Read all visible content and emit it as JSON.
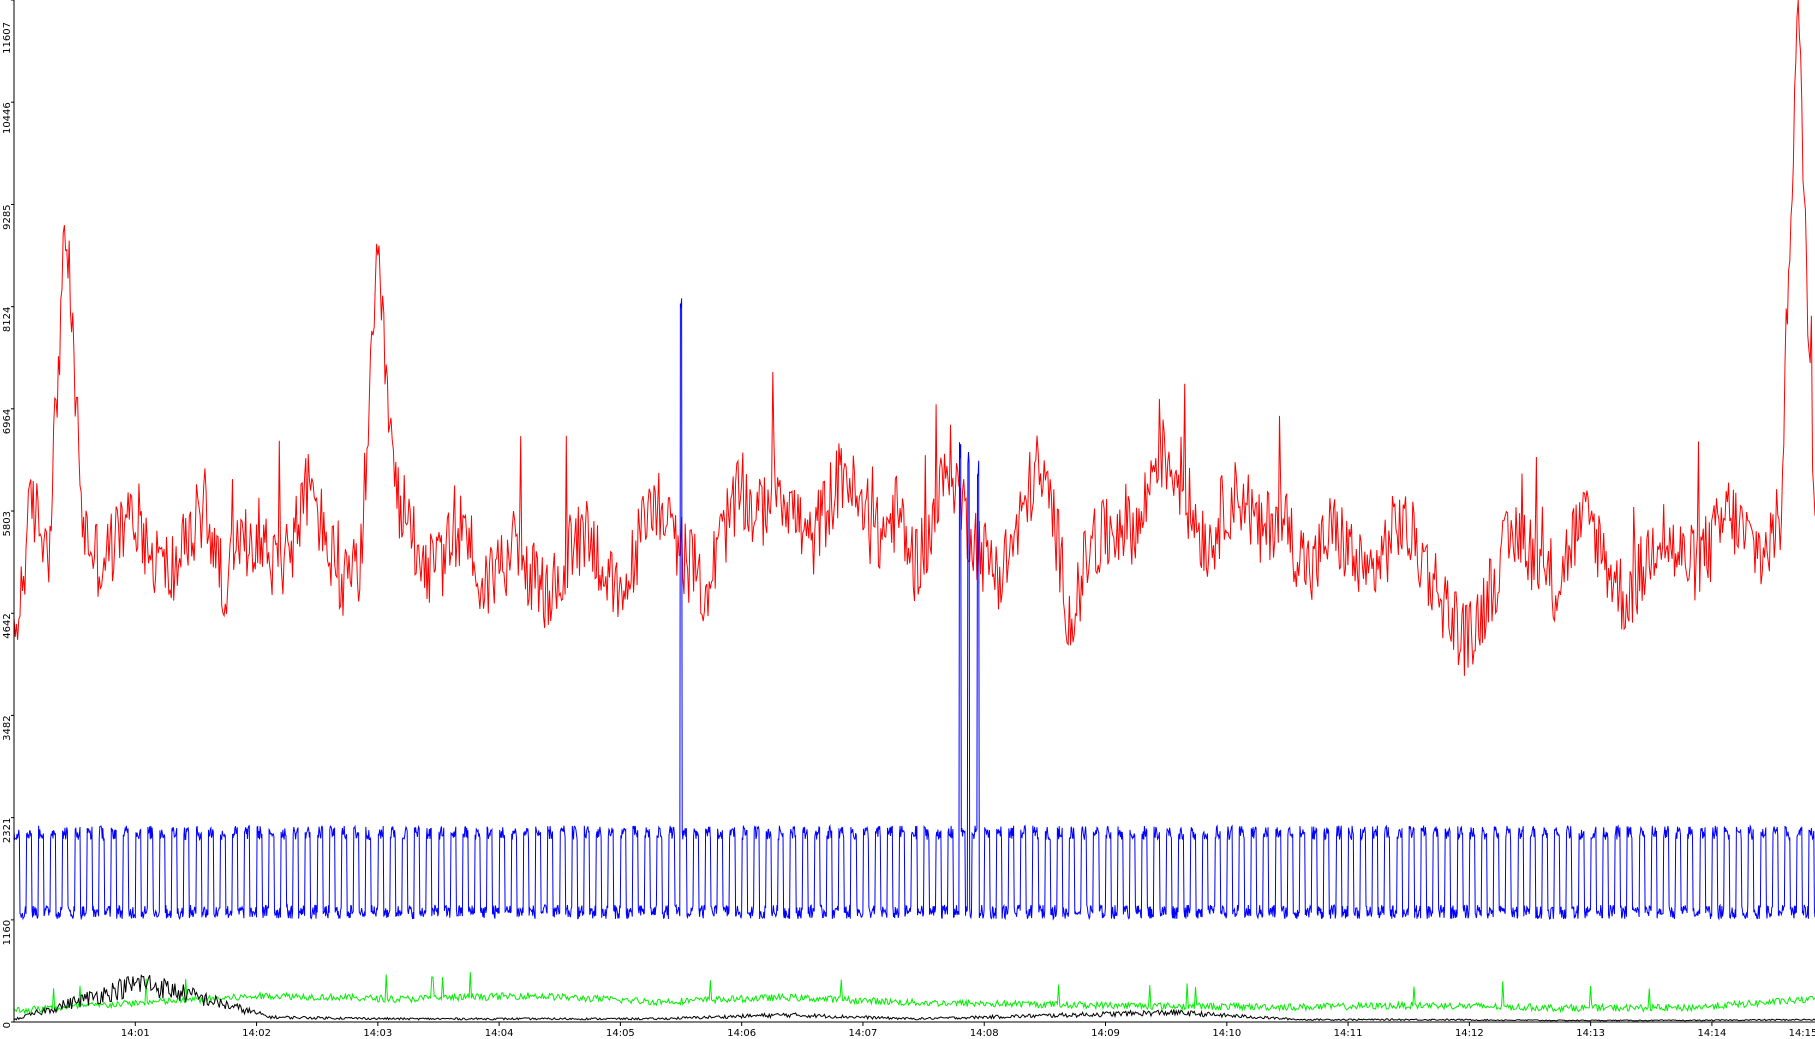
{
  "chart_data": {
    "type": "line",
    "title": "",
    "xlabel": "",
    "ylabel": "",
    "ylim": [
      0,
      11607
    ],
    "grid": false,
    "legend": "none",
    "y_ticks": [
      0,
      1160,
      2321,
      3482,
      4642,
      5803,
      6964,
      8124,
      9285,
      10446,
      11607
    ],
    "x_ticks": [
      "14:01",
      "14:02",
      "14:03",
      "14:04",
      "14:05",
      "14:06",
      "14:07",
      "14:08",
      "14:09",
      "14:10",
      "14:11",
      "14:12",
      "14:13",
      "14:14",
      "14:15"
    ],
    "x_range_minutes": [
      0,
      14.85
    ],
    "series": [
      {
        "color": "#ff0000",
        "values_per_minute": [
          4200,
          5900,
          5400,
          9100,
          5600,
          5200,
          5500,
          5800,
          5300,
          5100,
          5400,
          5900,
          5000,
          5300,
          5600,
          5200,
          5400,
          6100,
          5500,
          4900,
          5200,
          8600,
          6000,
          5600,
          5100,
          5300,
          5700,
          4900,
          5200,
          5400,
          5000,
          4800,
          5300,
          5600,
          5200,
          4700,
          5400,
          6000,
          5500,
          5200,
          4900,
          5600,
          6000,
          5700,
          6200,
          5800,
          5400,
          5900,
          6300,
          5700,
          5500,
          5800,
          5200,
          5600,
          6400,
          5700,
          5300,
          5100,
          5600,
          6300,
          5800,
          4500,
          5300,
          5500,
          5700,
          5600,
          6500,
          6300,
          5800,
          5400,
          5900,
          6000,
          5500,
          5800,
          5400,
          5100,
          5600,
          5400,
          5000,
          5300,
          5700,
          5400,
          5000,
          4600,
          4300,
          4800,
          5300,
          5600,
          5200,
          4900,
          5500,
          5700,
          5200,
          4800,
          5100,
          5600,
          5300,
          5200,
          5400,
          5800,
          5500,
          5300,
          5700,
          11600,
          5800
        ]
      },
      {
        "color": "#0000ff",
        "baseline": 1250,
        "peak": 2150,
        "spikes": [
          {
            "minute": 5.5,
            "value": 8300
          },
          {
            "minute": 7.8,
            "value": 6600
          },
          {
            "minute": 7.87,
            "value": 6500
          },
          {
            "minute": 7.95,
            "value": 6400
          }
        ]
      },
      {
        "color": "#00ee00",
        "values_per_minute": [
          130,
          220,
          300,
          260,
          300,
          230,
          280,
          220,
          200,
          180,
          170,
          190,
          160,
          160,
          260
        ]
      },
      {
        "color": "#000000",
        "values_per_minute": [
          30,
          500,
          60,
          40,
          40,
          40,
          90,
          40,
          80,
          120,
          30,
          30,
          20,
          20,
          30
        ]
      }
    ]
  }
}
